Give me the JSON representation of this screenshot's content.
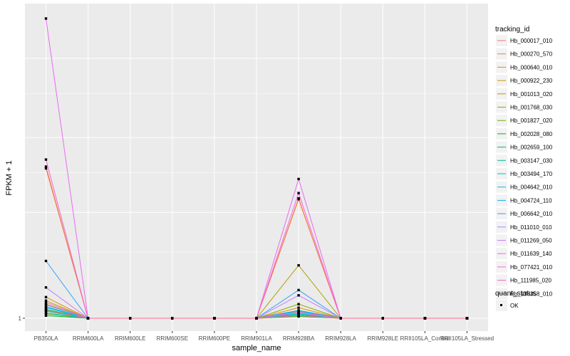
{
  "chart_data": {
    "type": "line",
    "xlabel": "sample_name",
    "ylabel": "FPKM + 1",
    "categories": [
      "PB350LA",
      "RRIM600LA",
      "RRIM600LE",
      "RRIM600SE",
      "RRIM600PE",
      "RRIM901LA",
      "RRIM928BA",
      "RRIM928LA",
      "RRIM928LE",
      "RRII105LA_Control",
      "RRII105LA_Stressed"
    ],
    "y_ticks": [
      {
        "value": 1,
        "label": "1"
      }
    ],
    "ylim": [
      0.5,
      36
    ],
    "grid": true,
    "series": [
      {
        "name": "Hb_000017_010",
        "color": "#F8766D",
        "values": [
          18.0,
          1,
          1,
          1,
          1,
          1,
          14.5,
          1,
          1,
          1,
          1
        ]
      },
      {
        "name": "Hb_000270_570",
        "color": "#EC8239",
        "values": [
          18.2,
          1,
          1,
          1,
          1,
          1,
          14.6,
          1,
          1,
          1,
          1
        ]
      },
      {
        "name": "Hb_000640_010",
        "color": "#DB8E00",
        "values": [
          3.4,
          1,
          1,
          1,
          1,
          1,
          2.2,
          1,
          1,
          1,
          1
        ]
      },
      {
        "name": "Hb_000922_230",
        "color": "#C79800",
        "values": [
          2.0,
          1,
          1,
          1,
          1,
          1,
          1.6,
          1,
          1,
          1,
          1
        ]
      },
      {
        "name": "Hb_001013_020",
        "color": "#AEA200",
        "values": [
          3.0,
          1,
          1,
          1,
          1,
          1,
          7.0,
          1,
          1,
          1,
          1
        ]
      },
      {
        "name": "Hb_001768_030",
        "color": "#8FAA00",
        "values": [
          2.6,
          1,
          1,
          1,
          1,
          1,
          2.6,
          1,
          1,
          1,
          1
        ]
      },
      {
        "name": "Hb_001827_020",
        "color": "#64B200",
        "values": [
          1.5,
          1,
          1,
          1,
          1,
          1,
          1.3,
          1,
          1,
          1,
          1
        ]
      },
      {
        "name": "Hb_002028_080",
        "color": "#00B81B",
        "values": [
          1.3,
          1,
          1,
          1,
          1,
          1,
          1.2,
          1,
          1,
          1,
          1
        ]
      },
      {
        "name": "Hb_002659_100",
        "color": "#00BD5C",
        "values": [
          2.0,
          1,
          1,
          1,
          1,
          1,
          1.5,
          1,
          1,
          1,
          1
        ]
      },
      {
        "name": "Hb_003147_030",
        "color": "#00C08E",
        "values": [
          1.8,
          1,
          1,
          1,
          1,
          1,
          1.4,
          1,
          1,
          1,
          1
        ]
      },
      {
        "name": "Hb_003494_170",
        "color": "#00C1B7",
        "values": [
          2.2,
          1,
          1,
          1,
          1,
          1,
          1.8,
          1,
          1,
          1,
          1
        ]
      },
      {
        "name": "Hb_004642_010",
        "color": "#00BDDC",
        "values": [
          1.6,
          1,
          1,
          1,
          1,
          1,
          1.5,
          1,
          1,
          1,
          1
        ]
      },
      {
        "name": "Hb_004724_110",
        "color": "#00B4F0",
        "values": [
          2.3,
          1,
          1,
          1,
          1,
          1,
          1.9,
          1,
          1,
          1,
          1
        ]
      },
      {
        "name": "Hb_006642_010",
        "color": "#35A2FF",
        "values": [
          7.5,
          1,
          1,
          1,
          1,
          1,
          4.2,
          1,
          1,
          1,
          1
        ]
      },
      {
        "name": "Hb_011010_010",
        "color": "#9590FF",
        "values": [
          2.5,
          1,
          1,
          1,
          1,
          1,
          1.6,
          1,
          1,
          1,
          1
        ]
      },
      {
        "name": "Hb_011269_050",
        "color": "#C77CFF",
        "values": [
          4.5,
          1,
          1,
          1,
          1,
          1,
          3.6,
          1,
          1,
          1,
          1
        ]
      },
      {
        "name": "Hb_011639_140",
        "color": "#E76BF3",
        "values": [
          35.0,
          1,
          1,
          1,
          1,
          1,
          16.8,
          1,
          1,
          1,
          1
        ]
      },
      {
        "name": "Hb_077421_010",
        "color": "#FA62DB",
        "values": [
          19.0,
          1,
          1,
          1,
          1,
          1,
          15.2,
          1,
          1,
          1,
          1
        ]
      },
      {
        "name": "Hb_111985_020",
        "color": "#FF62BC",
        "values": [
          2.8,
          1,
          1,
          1,
          1,
          1,
          1.7,
          1,
          1,
          1,
          1
        ]
      },
      {
        "name": "Hb_138358_010",
        "color": "#FF6C91",
        "values": [
          1.9,
          1,
          1,
          1,
          1,
          1,
          1.3,
          1,
          1,
          1,
          1
        ]
      }
    ],
    "legend": {
      "placement": "right",
      "title": "tracking_id",
      "shape_title": "quant_status",
      "shape_label": "OK"
    },
    "colors": {
      "panel_background": "#EBEBEB",
      "grid_line": "#FFFFFF",
      "point": "#000000"
    }
  }
}
